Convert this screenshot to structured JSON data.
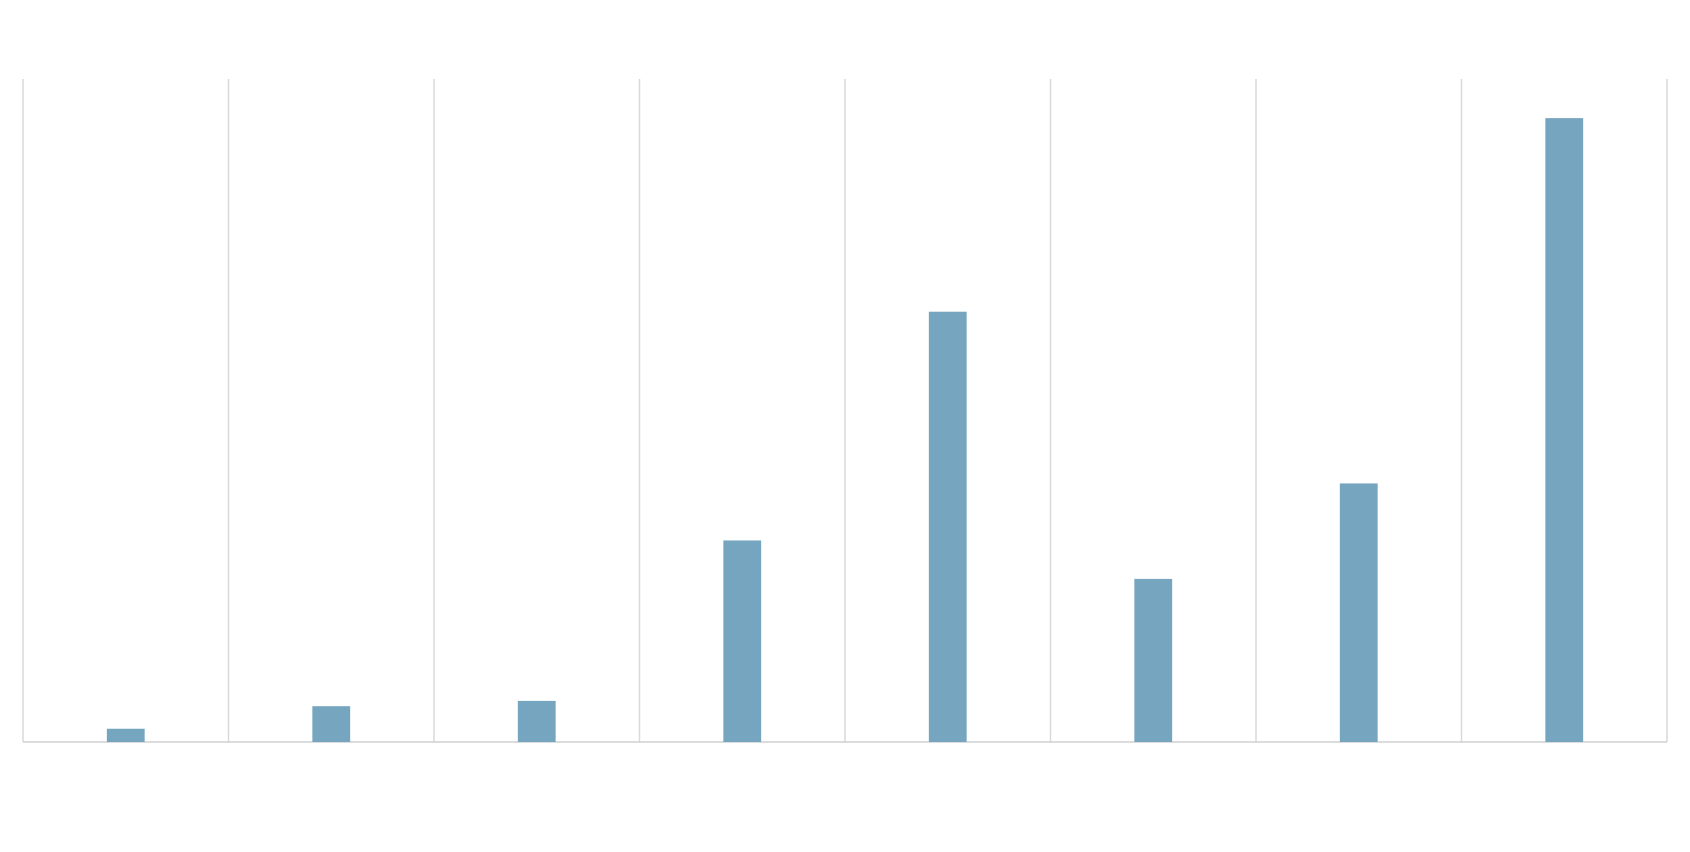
{
  "chart_data": {
    "type": "bar",
    "categories": [
      null,
      null,
      null,
      null,
      null,
      null,
      null,
      null
    ],
    "values": [
      2,
      5.4,
      6.2,
      30.4,
      64.9,
      24.6,
      39.0,
      94.1
    ],
    "color": "#76a5bf",
    "ylim": [
      0,
      100
    ],
    "grid": true
  }
}
